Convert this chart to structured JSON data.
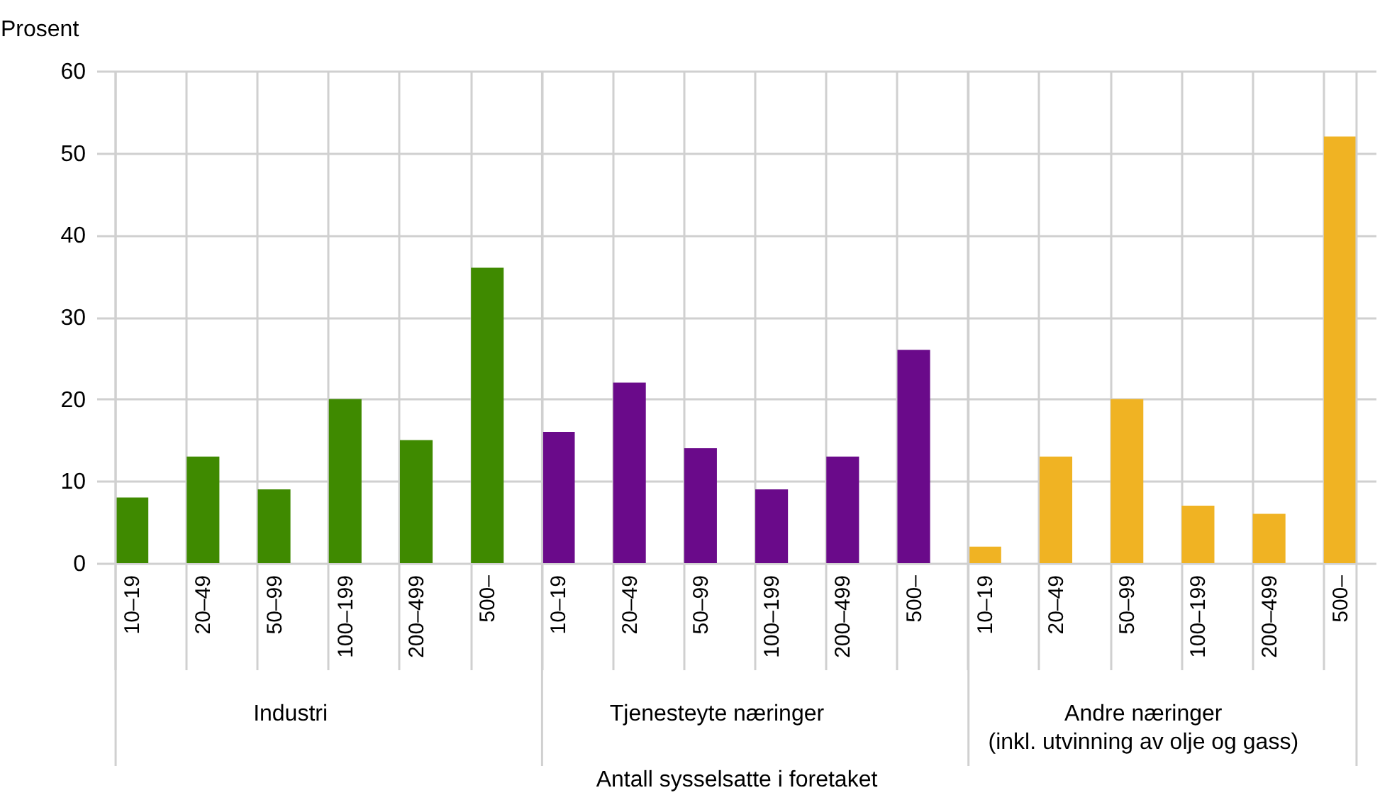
{
  "chart_data": {
    "type": "bar",
    "ylabel": "Prosent",
    "xlabel": "Antall sysselsatte i foretaket",
    "categories": [
      "10–19",
      "20–49",
      "50–99",
      "100–199",
      "200–499",
      "500–",
      "10–19",
      "20–49",
      "50–99",
      "100–199",
      "200–499",
      "500–",
      "10–19",
      "20–49",
      "50–99",
      "100–199",
      "200–499",
      "500–"
    ],
    "series": [
      {
        "color": "#3f8a00",
        "values": [
          8,
          13,
          9,
          20,
          15,
          36,
          null,
          null,
          null,
          null,
          null,
          null,
          null,
          null,
          null,
          null,
          null,
          null
        ]
      },
      {
        "color": "#6a0a8a",
        "values": [
          null,
          null,
          null,
          null,
          null,
          null,
          16,
          22,
          14,
          9,
          13,
          26,
          null,
          null,
          null,
          null,
          null,
          null
        ]
      },
      {
        "color": "#f0b323",
        "values": [
          null,
          null,
          null,
          null,
          null,
          null,
          null,
          null,
          null,
          null,
          null,
          null,
          2,
          13,
          20,
          7,
          6,
          52
        ]
      }
    ],
    "annotations": [
      "Industri",
      "Tjenesteyte næringer",
      "Andre næringer\n(inkl. utvinning av olje og gass)"
    ],
    "ylim": [
      0,
      60
    ],
    "yticks": [
      0,
      10,
      20,
      30,
      40,
      50,
      60
    ],
    "grid": true
  }
}
